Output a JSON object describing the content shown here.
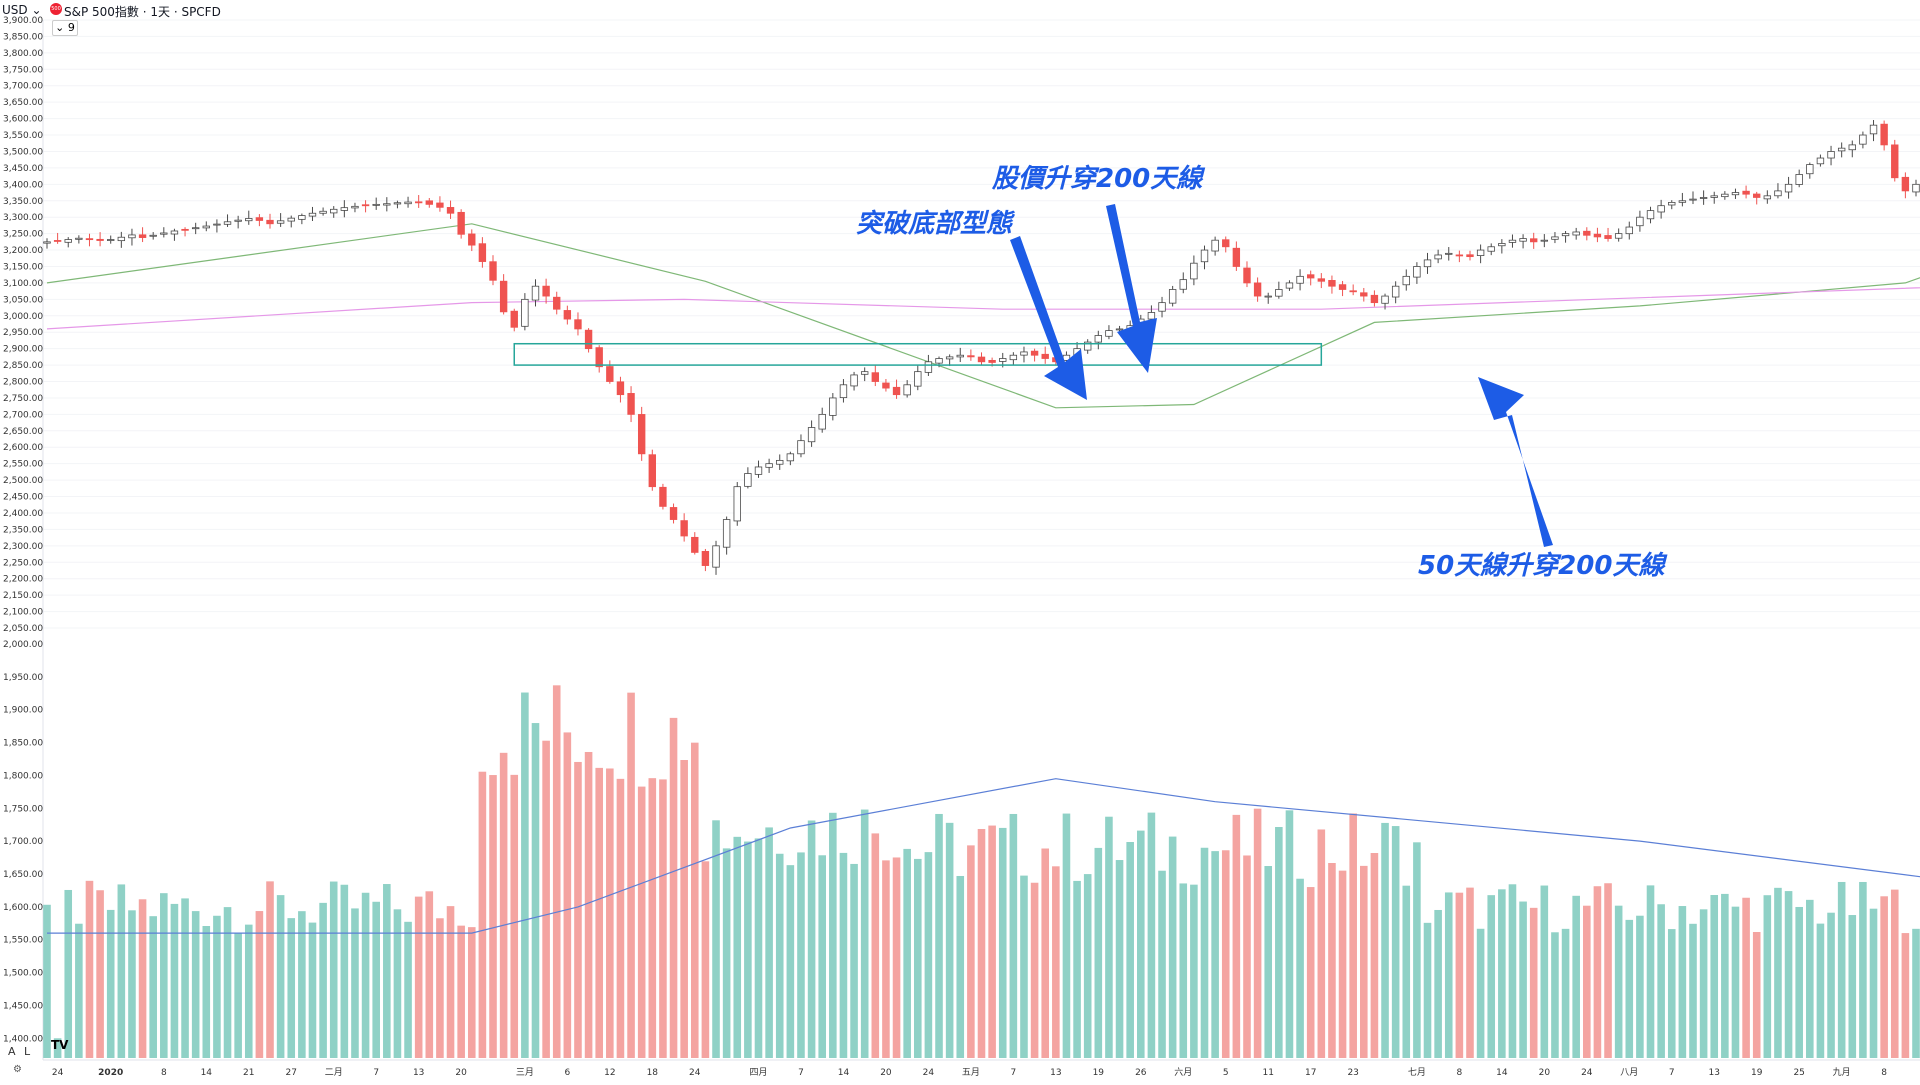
{
  "header": {
    "currency": "USD",
    "currency_caret": "⌄",
    "symbol_badge": "500",
    "symbol_title": "S&P 500指數 · 1天 · SPCFD",
    "collapse_label": "⌄ 9"
  },
  "footer": {
    "logo": "TV",
    "auto_label": "A",
    "log_label": "L",
    "settings_icon": "⚙"
  },
  "annotations": {
    "breakout": "突破底部型態",
    "price_cross": "股價升穿200天線",
    "ma_cross": "50天線升穿200天線"
  },
  "colors": {
    "up": "#26a69a",
    "down": "#ef5350",
    "ma50": "#7fb877",
    "ma200": "#e598e8",
    "vol_ma": "#5b7fd6",
    "box": "#26a69a",
    "annotation": "#1d5ce6"
  },
  "chart_data": [
    {
      "type": "candlestick",
      "title": "S&P 500指數 · 1天 · SPCFD",
      "ylim": [
        2050,
        3900
      ],
      "y_ticks": [
        "3,900.00",
        "3,850.00",
        "3,800.00",
        "3,750.00",
        "3,700.00",
        "3,650.00",
        "3,600.00",
        "3,550.00",
        "3,500.00",
        "3,450.00",
        "3,400.00",
        "3,350.00",
        "3,300.00",
        "3,250.00",
        "3,200.00",
        "3,150.00",
        "3,100.00",
        "3,050.00",
        "3,000.00",
        "2,950.00",
        "2,900.00",
        "2,850.00",
        "2,800.00",
        "2,750.00",
        "2,700.00",
        "2,650.00",
        "2,600.00",
        "2,550.00",
        "2,500.00",
        "2,450.00",
        "2,400.00",
        "2,350.00",
        "2,300.00",
        "2,250.00",
        "2,200.00",
        "2,150.00",
        "2,100.00",
        "2,050.00"
      ],
      "x_ticks": [
        {
          "i": 1,
          "label": "24"
        },
        {
          "i": 6,
          "label": "2020"
        },
        {
          "i": 11,
          "label": "8"
        },
        {
          "i": 15,
          "label": "14"
        },
        {
          "i": 19,
          "label": "21"
        },
        {
          "i": 23,
          "label": "27"
        },
        {
          "i": 27,
          "label": "二月"
        },
        {
          "i": 31,
          "label": "7"
        },
        {
          "i": 35,
          "label": "13"
        },
        {
          "i": 39,
          "label": "20"
        },
        {
          "i": 45,
          "label": "三月"
        },
        {
          "i": 49,
          "label": "6"
        },
        {
          "i": 53,
          "label": "12"
        },
        {
          "i": 57,
          "label": "18"
        },
        {
          "i": 61,
          "label": "24"
        },
        {
          "i": 67,
          "label": "四月"
        },
        {
          "i": 71,
          "label": "7"
        },
        {
          "i": 75,
          "label": "14"
        },
        {
          "i": 79,
          "label": "20"
        },
        {
          "i": 83,
          "label": "24"
        },
        {
          "i": 87,
          "label": "五月"
        },
        {
          "i": 91,
          "label": "7"
        },
        {
          "i": 95,
          "label": "13"
        },
        {
          "i": 99,
          "label": "19"
        },
        {
          "i": 103,
          "label": "26"
        },
        {
          "i": 107,
          "label": "六月"
        },
        {
          "i": 111,
          "label": "5"
        },
        {
          "i": 115,
          "label": "11"
        },
        {
          "i": 119,
          "label": "17"
        },
        {
          "i": 123,
          "label": "23"
        },
        {
          "i": 129,
          "label": "七月"
        },
        {
          "i": 133,
          "label": "8"
        },
        {
          "i": 137,
          "label": "14"
        },
        {
          "i": 141,
          "label": "20"
        },
        {
          "i": 145,
          "label": "24"
        },
        {
          "i": 149,
          "label": "八月"
        },
        {
          "i": 153,
          "label": "7"
        },
        {
          "i": 157,
          "label": "13"
        },
        {
          "i": 161,
          "label": "19"
        },
        {
          "i": 165,
          "label": "25"
        },
        {
          "i": 169,
          "label": "九月"
        },
        {
          "i": 173,
          "label": "8"
        }
      ],
      "closes": [
        3225,
        3228,
        3232,
        3236,
        3233,
        3229,
        3232,
        3239,
        3246,
        3238,
        3245,
        3252,
        3258,
        3262,
        3268,
        3273,
        3279,
        3286,
        3291,
        3296,
        3290,
        3280,
        3289,
        3297,
        3305,
        3312,
        3318,
        3324,
        3329,
        3333,
        3336,
        3339,
        3341,
        3344,
        3346,
        3345,
        3339,
        3330,
        3312,
        3248,
        3215,
        3165,
        3108,
        3012,
        2965,
        3050,
        3090,
        3060,
        3020,
        2990,
        2960,
        2900,
        2845,
        2800,
        2760,
        2700,
        2580,
        2480,
        2420,
        2380,
        2330,
        2280,
        2240,
        2300,
        2380,
        2480,
        2520,
        2540,
        2550,
        2560,
        2580,
        2620,
        2660,
        2700,
        2750,
        2790,
        2820,
        2830,
        2800,
        2780,
        2760,
        2790,
        2830,
        2860,
        2870,
        2875,
        2880,
        2875,
        2860,
        2858,
        2870,
        2880,
        2890,
        2880,
        2870,
        2860,
        2880,
        2900,
        2920,
        2940,
        2955,
        2960,
        2970,
        2990,
        3010,
        3040,
        3080,
        3110,
        3160,
        3200,
        3230,
        3210,
        3150,
        3100,
        3060,
        3060,
        3080,
        3100,
        3120,
        3115,
        3105,
        3090,
        3080,
        3075,
        3060,
        3040,
        3060,
        3090,
        3120,
        3150,
        3170,
        3185,
        3190,
        3185,
        3180,
        3200,
        3210,
        3220,
        3230,
        3235,
        3225,
        3230,
        3240,
        3250,
        3255,
        3245,
        3240,
        3235,
        3250,
        3270,
        3300,
        3320,
        3335,
        3345,
        3350,
        3355,
        3360,
        3365,
        3370,
        3375,
        3370,
        3360,
        3365,
        3380,
        3400,
        3430,
        3460,
        3480,
        3500,
        3510,
        3520,
        3550,
        3580,
        3520,
        3420,
        3380,
        3400
      ],
      "ma50": [
        [
          0,
          3100
        ],
        [
          40,
          3280
        ],
        [
          62,
          3105
        ],
        [
          95,
          2720
        ],
        [
          108,
          2730
        ],
        [
          125,
          2980
        ],
        [
          150,
          3030
        ],
        [
          175,
          3100
        ],
        [
          189,
          3260
        ]
      ],
      "ma200": [
        [
          0,
          2960
        ],
        [
          40,
          3040
        ],
        [
          60,
          3050
        ],
        [
          90,
          3020
        ],
        [
          120,
          3020
        ],
        [
          189,
          3100
        ]
      ],
      "breakout_box": {
        "from_index": 44,
        "to_index": 120,
        "low": 2850,
        "high": 2915
      }
    },
    {
      "type": "bar",
      "title": "volume",
      "ylim": [
        1370,
        2000
      ],
      "y_ticks": [
        "2,000.00",
        "1,950.00",
        "1,900.00",
        "1,850.00",
        "1,800.00",
        "1,750.00",
        "1,700.00",
        "1,650.00",
        "1,600.00",
        "1,550.00",
        "1,500.00",
        "1,450.00",
        "1,400.00"
      ],
      "volume_ma": [
        [
          0,
          1560
        ],
        [
          40,
          1560
        ],
        [
          50,
          1600
        ],
        [
          70,
          1720
        ],
        [
          95,
          1795
        ],
        [
          110,
          1760
        ],
        [
          150,
          1700
        ],
        [
          189,
          1620
        ]
      ]
    }
  ]
}
